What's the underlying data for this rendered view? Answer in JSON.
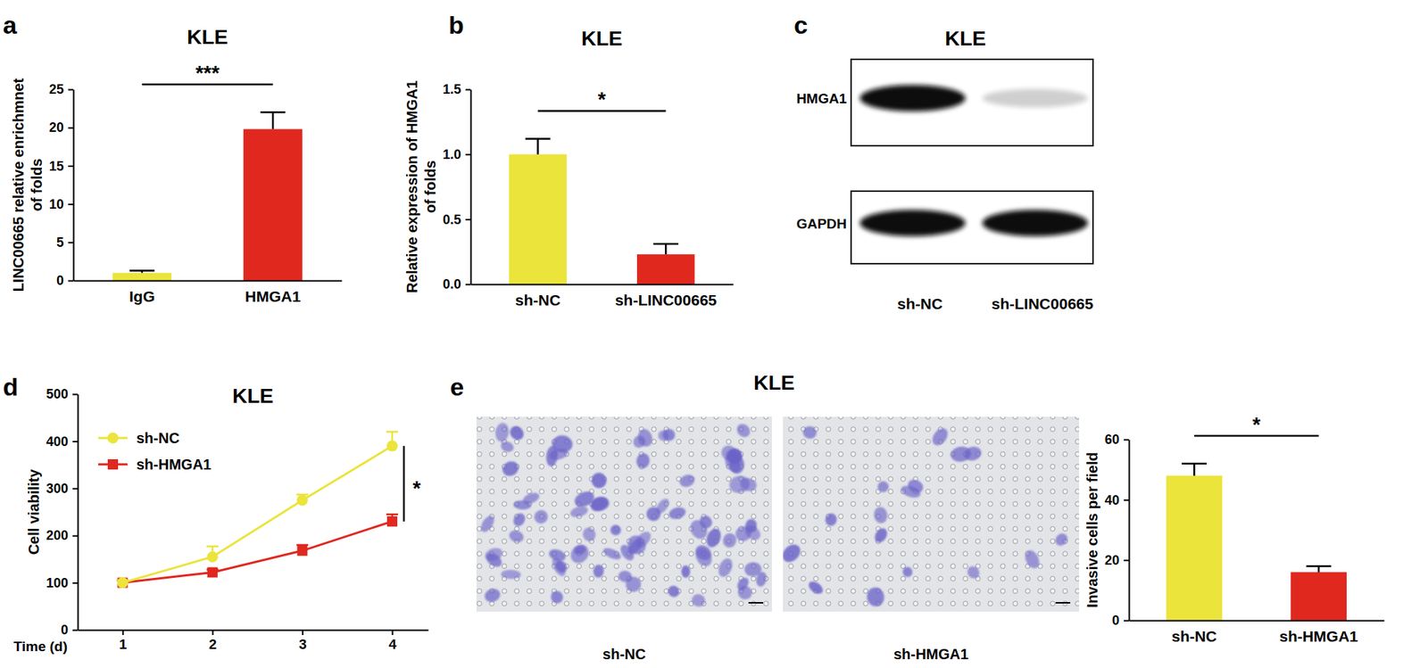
{
  "chart_data": [
    {
      "panel": "a",
      "type": "bar",
      "title": "KLE",
      "y_label": [
        "LINC00665 relative enrichmnet",
        "of folds"
      ],
      "categories": [
        "IgG",
        "HMGA1"
      ],
      "values": [
        1.0,
        19.8
      ],
      "errors": [
        0.3,
        2.2
      ],
      "colors": [
        "#ebe43b",
        "#e0281f"
      ],
      "ylim": [
        0,
        25
      ],
      "yticks": [
        0,
        5,
        10,
        15,
        20,
        25
      ],
      "annotations": [
        "***"
      ]
    },
    {
      "panel": "b",
      "type": "bar",
      "title": "KLE",
      "y_label": [
        "Relative expression of HMGA1",
        "of folds"
      ],
      "categories": [
        "sh-NC",
        "sh-LINC00665"
      ],
      "values": [
        1.0,
        0.23
      ],
      "errors": [
        0.12,
        0.08
      ],
      "colors": [
        "#ebe43b",
        "#e0281f"
      ],
      "ylim": [
        0,
        1.5
      ],
      "yticks": [
        {
          "value": 0,
          "label": "0.0"
        },
        0.5,
        {
          "value": 1,
          "label": "1.0"
        },
        1.5
      ],
      "annotations": [
        "*"
      ]
    },
    {
      "panel": "c",
      "type": "western_blot",
      "title": "KLE",
      "bands": [
        "HMGA1",
        "GAPDH"
      ],
      "categories": [
        "sh-NC",
        "sh-LINC00665"
      ]
    },
    {
      "panel": "d",
      "type": "line",
      "title": "KLE",
      "x_label": "Time (d)",
      "y_label": [
        "Cell viability"
      ],
      "x": [
        1,
        2,
        3,
        4
      ],
      "xlim": [
        0.5,
        4.4
      ],
      "xticks": [
        1,
        2,
        3,
        4
      ],
      "ylim": [
        0,
        500
      ],
      "yticks": [
        0,
        100,
        200,
        300,
        400,
        500
      ],
      "legend": "upper left",
      "series": [
        {
          "name": "sh-NC",
          "color": "#ebe43b",
          "marker": "circle",
          "values": [
            100,
            155,
            275,
            390
          ],
          "errors": [
            5,
            22,
            12,
            30
          ]
        },
        {
          "name": "sh-HMGA1",
          "color": "#e0281f",
          "marker": "square",
          "values": [
            100,
            122,
            168,
            230
          ],
          "errors": [
            5,
            6,
            12,
            15
          ]
        }
      ],
      "annotations": [
        "*"
      ]
    },
    {
      "panel": "e",
      "type": "micrograph",
      "title": "KLE",
      "categories": [
        "sh-NC",
        "sh-HMGA1"
      ]
    },
    {
      "type": "bar",
      "y_label": [
        "Invasive cells per field"
      ],
      "categories": [
        "sh-NC",
        "sh-HMGA1"
      ],
      "values": [
        48,
        16
      ],
      "errors": [
        4,
        2
      ],
      "colors": [
        "#ebe43b",
        "#e0281f"
      ],
      "ylim": [
        0,
        60
      ],
      "yticks": [
        0,
        20,
        40,
        60
      ],
      "annotations": [
        "*"
      ]
    }
  ]
}
